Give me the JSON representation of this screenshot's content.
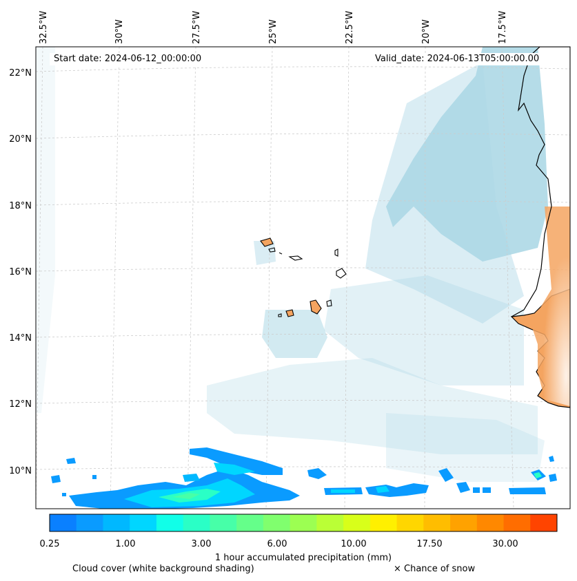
{
  "map": {
    "start_date": "Start date: 2024-06-12_00:00:00",
    "valid_date": "Valid_date: 2024-06-13T05:00:00.00",
    "lon_labels": [
      "32.5°W",
      "30°W",
      "27.5°W",
      "25°W",
      "22.5°W",
      "20°W",
      "17.5°W"
    ],
    "lat_labels": [
      "22°N",
      "20°N",
      "18°N",
      "16°N",
      "14°N",
      "12°N",
      "10°N"
    ]
  },
  "colorbar": {
    "tick_labels": [
      "0.25",
      "1.00",
      "3.00",
      "6.00",
      "10.00",
      "17.50",
      "30.00"
    ],
    "colors": [
      "#0a80ff",
      "#0a9bff",
      "#00b8ff",
      "#00d6ff",
      "#11ffe8",
      "#2affc6",
      "#47ffa8",
      "#65ff8a",
      "#80ff6e",
      "#9cff52",
      "#baff36",
      "#d8ff1a",
      "#fff000",
      "#ffd600",
      "#ffbd00",
      "#ffa200",
      "#ff8800",
      "#ff6d00",
      "#ff4400"
    ],
    "title": "1 hour accumulated precipitation (mm)"
  },
  "legend": {
    "cloud_cover": "Cloud cover (white background shading)",
    "snow": "× Chance of snow"
  },
  "colors": {
    "land": "#f4a460",
    "cloud": "#add8e6",
    "coast": "#000000"
  }
}
